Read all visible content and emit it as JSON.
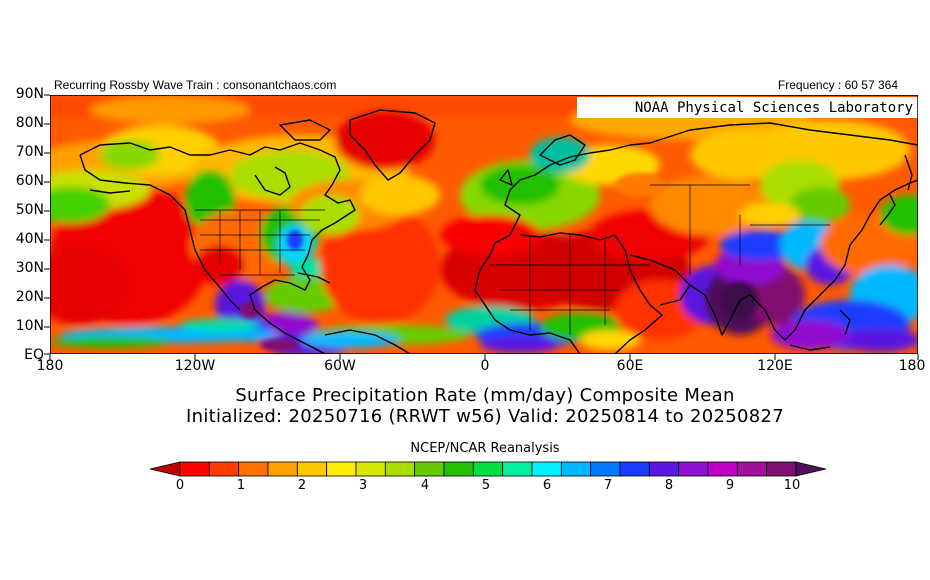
{
  "header": {
    "left_text": "Recurring Rossby Wave Train : consonantchaos.com",
    "right_text": "Frequency : 60 57 364"
  },
  "map": {
    "watermark": "NOAA Physical Sciences Laboratory",
    "lat_ticks": [
      "90N",
      "80N",
      "70N",
      "60N",
      "50N",
      "40N",
      "30N",
      "20N",
      "10N",
      "EQ"
    ],
    "lon_ticks": [
      "180",
      "120W",
      "60W",
      "0",
      "60E",
      "120E",
      "180"
    ],
    "lat_range": [
      0,
      90
    ],
    "lon_range": [
      -180,
      180
    ],
    "field": "precipitation",
    "colors_note": "red = dry, purple = wet"
  },
  "title": {
    "line1": "Surface Precipitation Rate (mm/day) Composite Mean",
    "line2": "Initialized: 20250716 (RRWT w56) Valid: 20250814 to 20250827"
  },
  "source": "NCEP/NCAR Reanalysis",
  "colorbar": {
    "ticks": [
      "0",
      "1",
      "2",
      "3",
      "4",
      "5",
      "6",
      "7",
      "8",
      "9",
      "10"
    ],
    "colors": [
      "#c00000",
      "#ff0000",
      "#ff3c00",
      "#ff6e00",
      "#ffa000",
      "#ffc800",
      "#ffee00",
      "#d8e600",
      "#aadd00",
      "#66cc00",
      "#22c000",
      "#00e040",
      "#00f0a0",
      "#00f0ff",
      "#00b8ff",
      "#0078ff",
      "#1a3cff",
      "#5a18e0",
      "#9010d0",
      "#c000c8",
      "#a0109a",
      "#801070",
      "#50105a"
    ]
  }
}
